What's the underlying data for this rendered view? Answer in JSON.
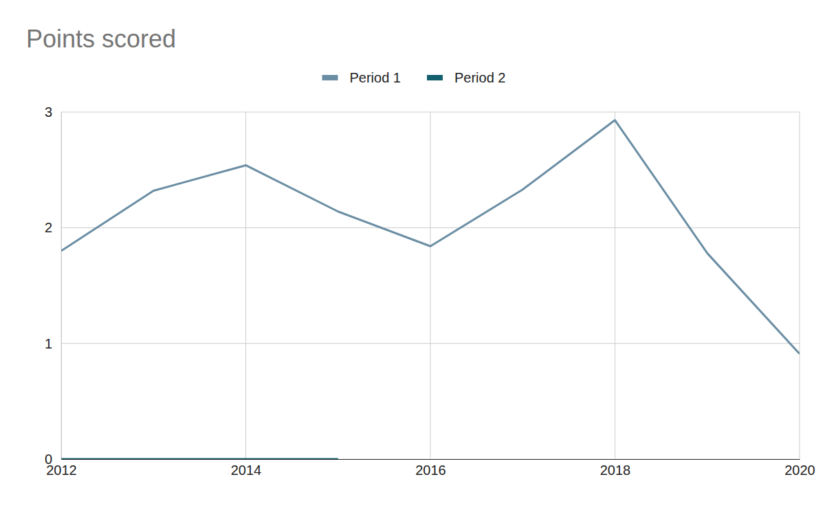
{
  "chart_data": {
    "type": "line",
    "title": "Points scored",
    "x": [
      2012,
      2013,
      2014,
      2015,
      2016,
      2017,
      2018,
      2019,
      2020
    ],
    "series": [
      {
        "name": "Period 1",
        "color": "#6b8ea4",
        "values": [
          1.8,
          2.32,
          2.54,
          2.14,
          1.84,
          2.33,
          2.93,
          1.78,
          0.91
        ]
      },
      {
        "name": "Period 2",
        "color": "#135f6e",
        "values": [
          0,
          0,
          0,
          0,
          null,
          null,
          null,
          null,
          null
        ]
      }
    ],
    "xlim": [
      2012,
      2020
    ],
    "xticks": [
      2012,
      2014,
      2016,
      2018,
      2020
    ],
    "ylim": [
      0,
      3
    ],
    "yticks": [
      0,
      1,
      2,
      3
    ],
    "grid": true,
    "legend": "top"
  }
}
